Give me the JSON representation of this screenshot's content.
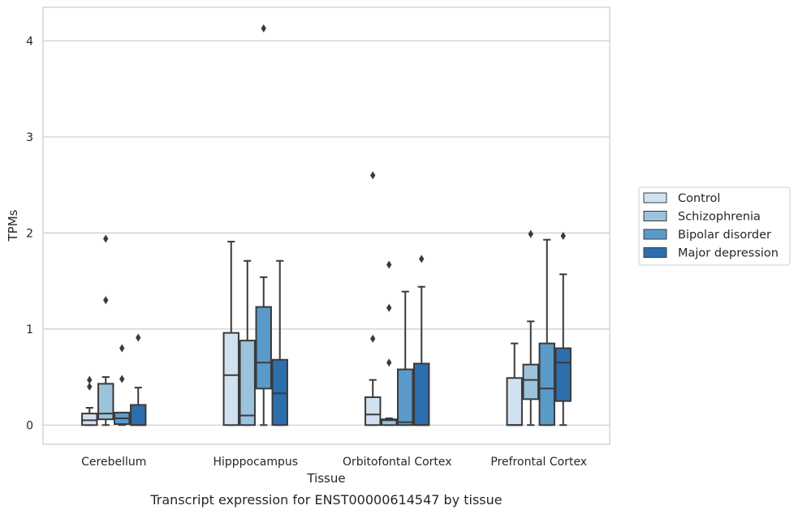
{
  "caption": "Transcript expression for ENST00000614547 by tissue",
  "chart_data": {
    "type": "box",
    "title": "",
    "xlabel": "Tissue",
    "ylabel": "TPMs",
    "ylim": [
      -0.2,
      4.35
    ],
    "yticks": [
      0,
      1,
      2,
      3,
      4
    ],
    "grid": "horizontal",
    "legend_position": "right",
    "categories": [
      "Cerebellum",
      "Hipppocampus",
      "Orbitofontal Cortex",
      "Prefrontal Cortex"
    ],
    "series": [
      {
        "name": "Control",
        "color": "#d1e1f0",
        "boxes": [
          {
            "whislo": 0.0,
            "q1": 0.0,
            "med": 0.05,
            "q3": 0.12,
            "whishi": 0.18,
            "fliers": [
              0.4,
              0.47
            ]
          },
          {
            "whislo": 0.0,
            "q1": 0.0,
            "med": 0.52,
            "q3": 0.96,
            "whishi": 1.91,
            "fliers": []
          },
          {
            "whislo": 0.0,
            "q1": 0.0,
            "med": 0.11,
            "q3": 0.29,
            "whishi": 0.47,
            "fliers": [
              0.9,
              2.6
            ]
          },
          {
            "whislo": 0.0,
            "q1": 0.0,
            "med": 0.0,
            "q3": 0.49,
            "whishi": 0.85,
            "fliers": []
          }
        ]
      },
      {
        "name": "Schizophrenia",
        "color": "#9bc3dc",
        "boxes": [
          {
            "whislo": 0.0,
            "q1": 0.06,
            "med": 0.12,
            "q3": 0.43,
            "whishi": 0.5,
            "fliers": [
              1.3,
              1.94
            ]
          },
          {
            "whislo": 0.0,
            "q1": 0.0,
            "med": 0.1,
            "q3": 0.88,
            "whishi": 1.71,
            "fliers": []
          },
          {
            "whislo": 0.0,
            "q1": 0.0,
            "med": 0.05,
            "q3": 0.06,
            "whishi": 0.07,
            "fliers": [
              0.65,
              1.22,
              1.67
            ]
          },
          {
            "whislo": 0.0,
            "q1": 0.27,
            "med": 0.47,
            "q3": 0.63,
            "whishi": 1.08,
            "fliers": [
              1.99
            ]
          }
        ]
      },
      {
        "name": "Bipolar disorder",
        "color": "#5a9ac9",
        "boxes": [
          {
            "whislo": 0.0,
            "q1": 0.01,
            "med": 0.07,
            "q3": 0.13,
            "whishi": 0.13,
            "fliers": [
              0.48,
              0.8
            ]
          },
          {
            "whislo": 0.0,
            "q1": 0.38,
            "med": 0.65,
            "q3": 1.23,
            "whishi": 1.54,
            "fliers": [
              4.13
            ]
          },
          {
            "whislo": 0.0,
            "q1": 0.0,
            "med": 0.03,
            "q3": 0.58,
            "whishi": 1.39,
            "fliers": []
          },
          {
            "whislo": 0.0,
            "q1": 0.0,
            "med": 0.38,
            "q3": 0.85,
            "whishi": 1.93,
            "fliers": []
          }
        ]
      },
      {
        "name": "Major depression",
        "color": "#2d6fad",
        "boxes": [
          {
            "whislo": 0.0,
            "q1": 0.0,
            "med": 0.0,
            "q3": 0.21,
            "whishi": 0.39,
            "fliers": [
              0.91
            ]
          },
          {
            "whislo": 0.0,
            "q1": 0.0,
            "med": 0.33,
            "q3": 0.68,
            "whishi": 1.71,
            "fliers": []
          },
          {
            "whislo": 0.0,
            "q1": 0.0,
            "med": 0.0,
            "q3": 0.64,
            "whishi": 1.44,
            "fliers": [
              1.73
            ]
          },
          {
            "whislo": 0.0,
            "q1": 0.25,
            "med": 0.65,
            "q3": 0.8,
            "whishi": 1.57,
            "fliers": [
              1.97
            ]
          }
        ]
      }
    ]
  }
}
